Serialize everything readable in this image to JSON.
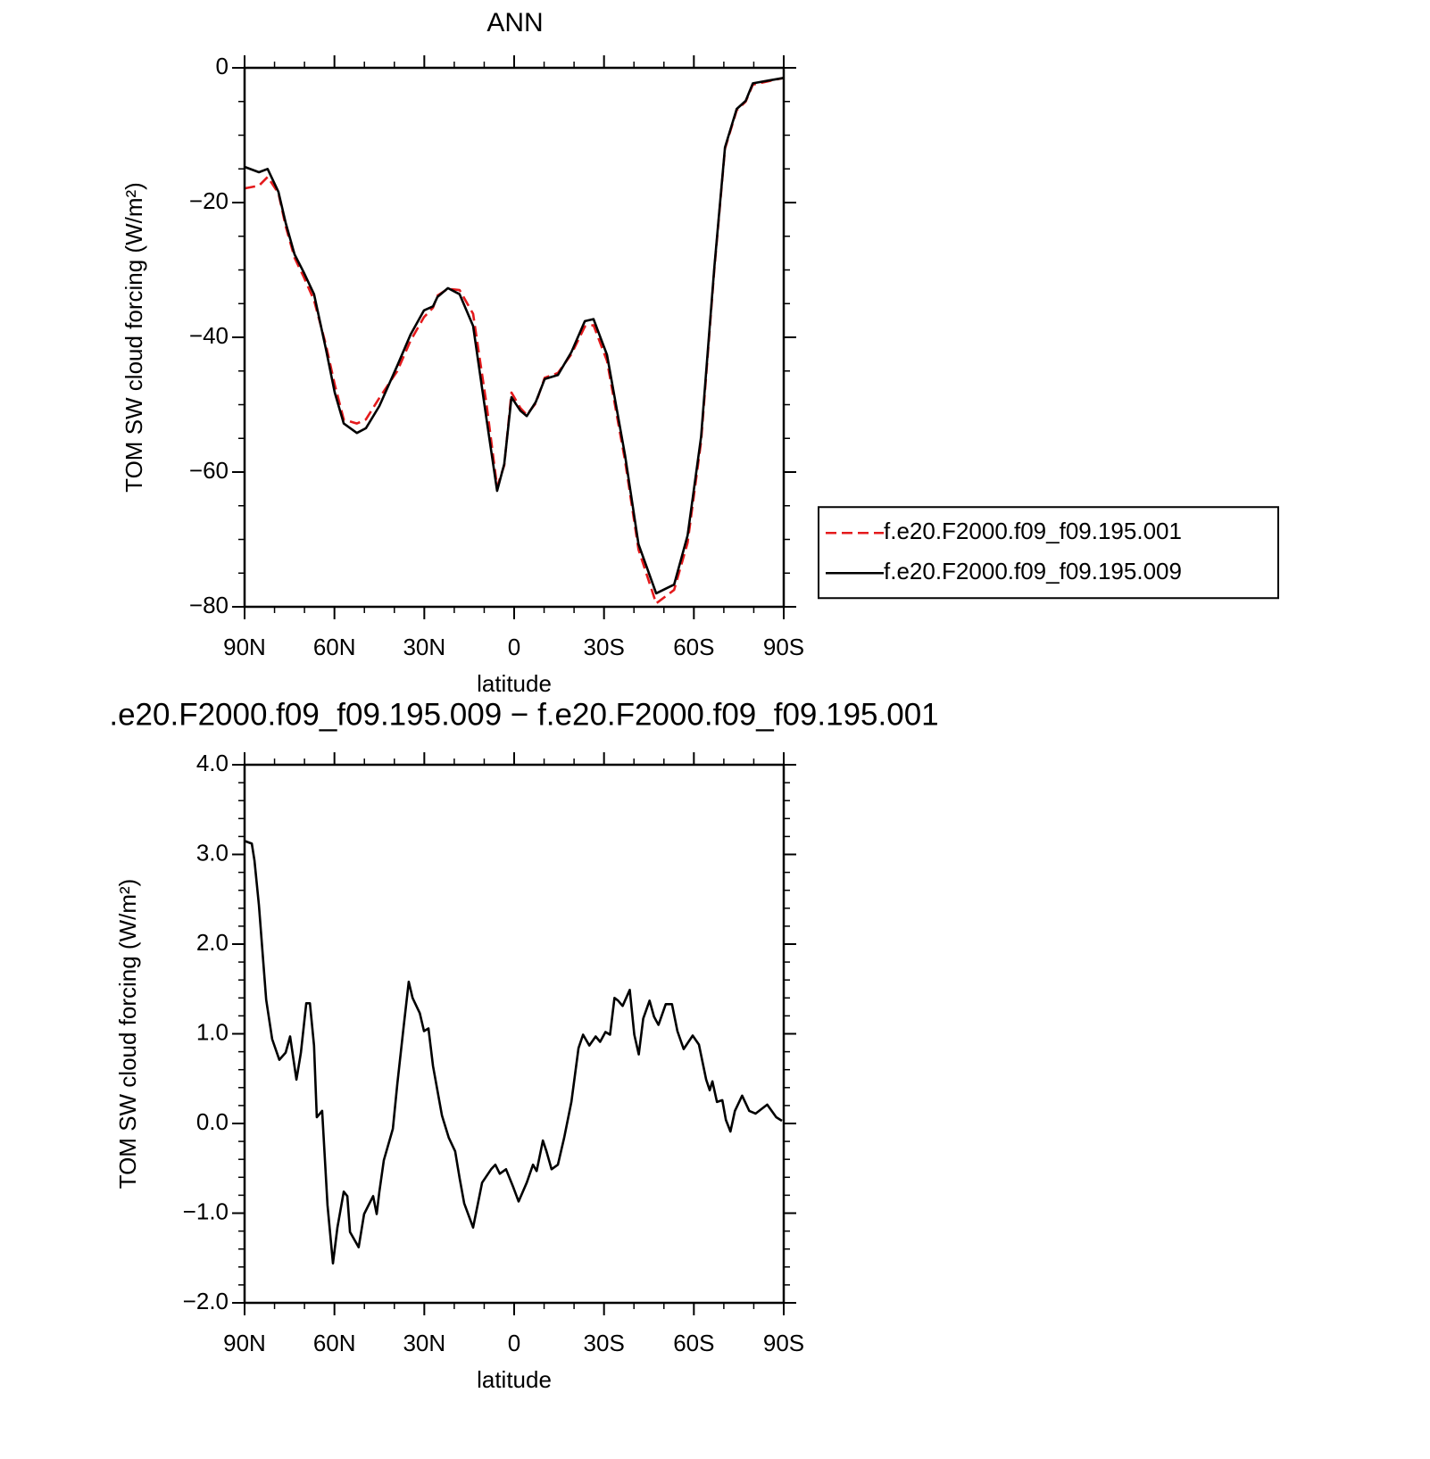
{
  "chart_data": [
    {
      "type": "line",
      "title": "ANN",
      "xlabel": "latitude",
      "ylabel": "TOM SW cloud forcing (W/m²)",
      "xlim": [
        90,
        -90
      ],
      "xticks": [
        {
          "value": 90,
          "label": "90N"
        },
        {
          "value": 60,
          "label": "60N"
        },
        {
          "value": 30,
          "label": "30N"
        },
        0,
        {
          "value": -30,
          "label": "30S"
        },
        {
          "value": -60,
          "label": "60S"
        },
        {
          "value": -90,
          "label": "90S"
        }
      ],
      "xminorticks": [
        80,
        70,
        50,
        40,
        20,
        10,
        -10,
        -20,
        -40,
        -50,
        -70,
        -80
      ],
      "ylim": [
        -80,
        0
      ],
      "yticks": [
        0,
        {
          "value": -20,
          "label": "−20"
        },
        {
          "value": -40,
          "label": "−40"
        },
        {
          "value": -60,
          "label": "−60"
        },
        {
          "value": -80,
          "label": "−80"
        }
      ],
      "yminorticks": [
        -5,
        -10,
        -15,
        -25,
        -30,
        -35,
        -45,
        -50,
        -55,
        -65,
        -70,
        -75
      ],
      "legend": "right",
      "x": [
        90,
        85.2,
        82.3,
        78.7,
        76.3,
        73.3,
        70.3,
        66.8,
        62.9,
        59.9,
        56.9,
        52.5,
        49.5,
        45,
        39,
        34.6,
        30.1,
        27.1,
        25.6,
        22.1,
        18.2,
        13.7,
        9.2,
        5.7,
        3.3,
        0.9,
        -2.1,
        -4.2,
        -7.2,
        -10.2,
        -14.6,
        -19.1,
        -23.6,
        -26.5,
        -31,
        -37,
        -41.5,
        -47.4,
        -53.4,
        -57.9,
        -62.4,
        -66.8,
        -70.4,
        -74.3,
        -77.3,
        -79.7,
        -84.8,
        -90
      ],
      "series": [
        {
          "name": "f.e20.F2000.f09_f09.195.001",
          "color": "#e41a1c",
          "linestyle": "dashed",
          "values": [
            -17.9,
            -17.5,
            -16.2,
            -18.6,
            -23.5,
            -28.2,
            -31,
            -34.5,
            -41,
            -47,
            -52.2,
            -52.8,
            -52.2,
            -49,
            -45,
            -40.5,
            -37,
            -35.6,
            -33.8,
            -32.8,
            -33,
            -36.5,
            -50,
            -62.2,
            -59,
            -48.2,
            -50.5,
            -51.5,
            -49.8,
            -46,
            -45.3,
            -42.5,
            -38.4,
            -38.2,
            -43.5,
            -58.3,
            -71.5,
            -79.5,
            -77.5,
            -70.5,
            -55.5,
            -30,
            -12,
            -6.3,
            -5,
            -2.5,
            -2,
            -1.5
          ]
        },
        {
          "name": "f.e20.F2000.f09_f09.195.009",
          "color": "#000000",
          "linestyle": "solid",
          "values": [
            -14.7,
            -15.5,
            -15,
            -18.4,
            -23,
            -27.7,
            -30.3,
            -33.6,
            -41.6,
            -48.2,
            -52.8,
            -54.2,
            -53.5,
            -50.2,
            -44.2,
            -39.6,
            -36,
            -35.4,
            -34,
            -32.7,
            -33.6,
            -38.3,
            -52.2,
            -62.8,
            -58.8,
            -48.9,
            -50.9,
            -51.7,
            -49.6,
            -46.2,
            -45.6,
            -42.2,
            -37.6,
            -37.3,
            -42.6,
            -57.5,
            -70.7,
            -78,
            -76.7,
            -69.4,
            -54.8,
            -29.7,
            -11.8,
            -6.1,
            -4.9,
            -2.3,
            -1.9,
            -1.5
          ]
        }
      ]
    },
    {
      "type": "line",
      "title": ".e20.F2000.f09_f09.195.009 − f.e20.F2000.f09_f09.195.001",
      "xlabel": "latitude",
      "ylabel": "TOM SW cloud forcing (W/m²)",
      "xlim": [
        90,
        -90
      ],
      "xticks": [
        {
          "value": 90,
          "label": "90N"
        },
        {
          "value": 60,
          "label": "60N"
        },
        {
          "value": 30,
          "label": "30N"
        },
        0,
        {
          "value": -30,
          "label": "30S"
        },
        {
          "value": -60,
          "label": "60S"
        },
        {
          "value": -90,
          "label": "90S"
        }
      ],
      "xminorticks": [
        80,
        70,
        50,
        40,
        20,
        10,
        -10,
        -20,
        -40,
        -50,
        -70,
        -80
      ],
      "ylim": [
        -2,
        4
      ],
      "yticks": [
        {
          "value": 4,
          "label": "4.0"
        },
        {
          "value": 3,
          "label": "3.0"
        },
        {
          "value": 2,
          "label": "2.0"
        },
        {
          "value": 1,
          "label": "1.0"
        },
        {
          "value": 0,
          "label": "0.0"
        },
        {
          "value": -1,
          "label": "−1.0"
        },
        {
          "value": -2,
          "label": "−2.0"
        }
      ],
      "yminorticks": [
        3.8,
        3.6,
        3.4,
        3.2,
        2.8,
        2.6,
        2.4,
        2.2,
        1.8,
        1.6,
        1.4,
        1.2,
        0.8,
        0.6,
        0.4,
        0.2,
        -0.2,
        -0.4,
        -0.6,
        -0.8,
        -1.2,
        -1.4,
        -1.6,
        -1.8
      ],
      "x": [
        90,
        87.6,
        86.7,
        85.2,
        82.8,
        80.8,
        78.4,
        76.3,
        74.8,
        72.7,
        71.2,
        69.4,
        68.2,
        66.8,
        65.9,
        64.1,
        62.3,
        60.5,
        59,
        56.9,
        55.7,
        54.8,
        51.9,
        50.1,
        48.6,
        47.1,
        45.9,
        45,
        43.5,
        40.5,
        39,
        36.9,
        35.2,
        33.9,
        31.5,
        30.1,
        28.6,
        27.1,
        24.1,
        21.8,
        19.7,
        18.2,
        16.7,
        13.7,
        10.7,
        7.7,
        6.3,
        4.8,
        2.7,
        0.3,
        -1.5,
        -4.2,
        -6.3,
        -7.5,
        -9.6,
        -10.8,
        -12.5,
        -14.6,
        -16.7,
        -19.1,
        -21.5,
        -23,
        -25.1,
        -27.2,
        -28.7,
        -30.5,
        -32,
        -33.5,
        -34.7,
        -36.2,
        -38.6,
        -40.1,
        -41.6,
        -43.1,
        -45.2,
        -46.7,
        -48.2,
        -50.6,
        -52.7,
        -54.5,
        -56.6,
        -59.6,
        -61.7,
        -64.1,
        -65.3,
        -66.2,
        -67.7,
        -69.5,
        -70.7,
        -72.2,
        -73.7,
        -76.1,
        -78.5,
        -80.6,
        -84.5,
        -87.5,
        -89.4
      ],
      "series": [
        {
          "color": "#000000",
          "linestyle": "solid",
          "values": [
            3.15,
            3.12,
            2.93,
            2.43,
            1.38,
            0.94,
            0.71,
            0.79,
            0.97,
            0.49,
            0.79,
            1.34,
            1.34,
            0.87,
            0.07,
            0.14,
            -0.91,
            -1.56,
            -1.16,
            -0.76,
            -0.81,
            -1.21,
            -1.38,
            -1.01,
            -0.91,
            -0.81,
            -1.01,
            -0.76,
            -0.41,
            -0.06,
            0.44,
            1.08,
            1.58,
            1.4,
            1.23,
            1.03,
            1.06,
            0.64,
            0.09,
            -0.16,
            -0.31,
            -0.61,
            -0.89,
            -1.16,
            -0.66,
            -0.51,
            -0.46,
            -0.56,
            -0.51,
            -0.71,
            -0.87,
            -0.66,
            -0.46,
            -0.53,
            -0.19,
            -0.31,
            -0.51,
            -0.46,
            -0.16,
            0.24,
            0.84,
            0.99,
            0.87,
            0.97,
            0.91,
            1.02,
            0.99,
            1.4,
            1.37,
            1.31,
            1.49,
            0.99,
            0.77,
            1.17,
            1.37,
            1.19,
            1.1,
            1.33,
            1.33,
            1.03,
            0.83,
            0.98,
            0.88,
            0.49,
            0.37,
            0.47,
            0.24,
            0.26,
            0.04,
            -0.09,
            0.14,
            0.31,
            0.14,
            0.11,
            0.21,
            0.07,
            0.03
          ]
        }
      ]
    }
  ]
}
